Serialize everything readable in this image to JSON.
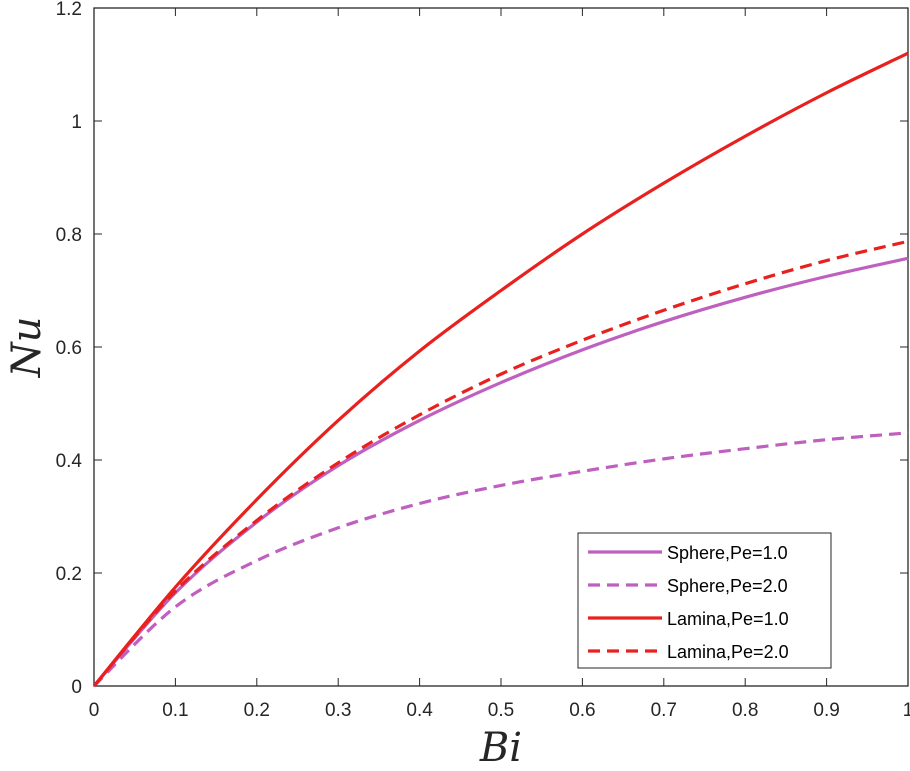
{
  "chart_data": {
    "type": "line",
    "title": "",
    "xlabel": "Bi",
    "ylabel": "Nu",
    "xlim": [
      0,
      1
    ],
    "ylim": [
      0,
      1.2
    ],
    "xticks": [
      0,
      0.1,
      0.2,
      0.3,
      0.4,
      0.5,
      0.6,
      0.7,
      0.8,
      0.9,
      1
    ],
    "xtick_labels": [
      "0",
      "0.1",
      "0.2",
      "0.3",
      "0.4",
      "0.5",
      "0.6",
      "0.7",
      "0.8",
      "0.9",
      "1"
    ],
    "yticks": [
      0,
      0.2,
      0.4,
      0.6,
      0.8,
      1,
      1.2
    ],
    "ytick_labels": [
      "0",
      "0.2",
      "0.4",
      "0.6",
      "0.8",
      "1",
      "1.2"
    ],
    "grid": false,
    "legend_position": "bottom-right",
    "x": [
      0,
      0.1,
      0.2,
      0.3,
      0.4,
      0.5,
      0.6,
      0.7,
      0.8,
      0.9,
      1.0
    ],
    "series": [
      {
        "name": "Sphere,Pe=1.0",
        "color": "#bf5fbf",
        "dash": "solid",
        "values": [
          0,
          0.165,
          0.29,
          0.39,
          0.47,
          0.537,
          0.595,
          0.645,
          0.688,
          0.725,
          0.757
        ]
      },
      {
        "name": "Sphere,Pe=2.0",
        "color": "#bf5fbf",
        "dash": "dashed",
        "values": [
          0,
          0.14,
          0.222,
          0.28,
          0.323,
          0.355,
          0.38,
          0.402,
          0.42,
          0.436,
          0.448
        ]
      },
      {
        "name": "Lamina,Pe=1.0",
        "color": "#e8211f",
        "dash": "solid",
        "values": [
          0,
          0.175,
          0.33,
          0.47,
          0.593,
          0.7,
          0.8,
          0.89,
          0.973,
          1.05,
          1.12
        ]
      },
      {
        "name": "Lamina,Pe=2.0",
        "color": "#e8211f",
        "dash": "dashed",
        "values": [
          0,
          0.168,
          0.293,
          0.395,
          0.48,
          0.552,
          0.612,
          0.665,
          0.712,
          0.753,
          0.787
        ]
      }
    ]
  }
}
